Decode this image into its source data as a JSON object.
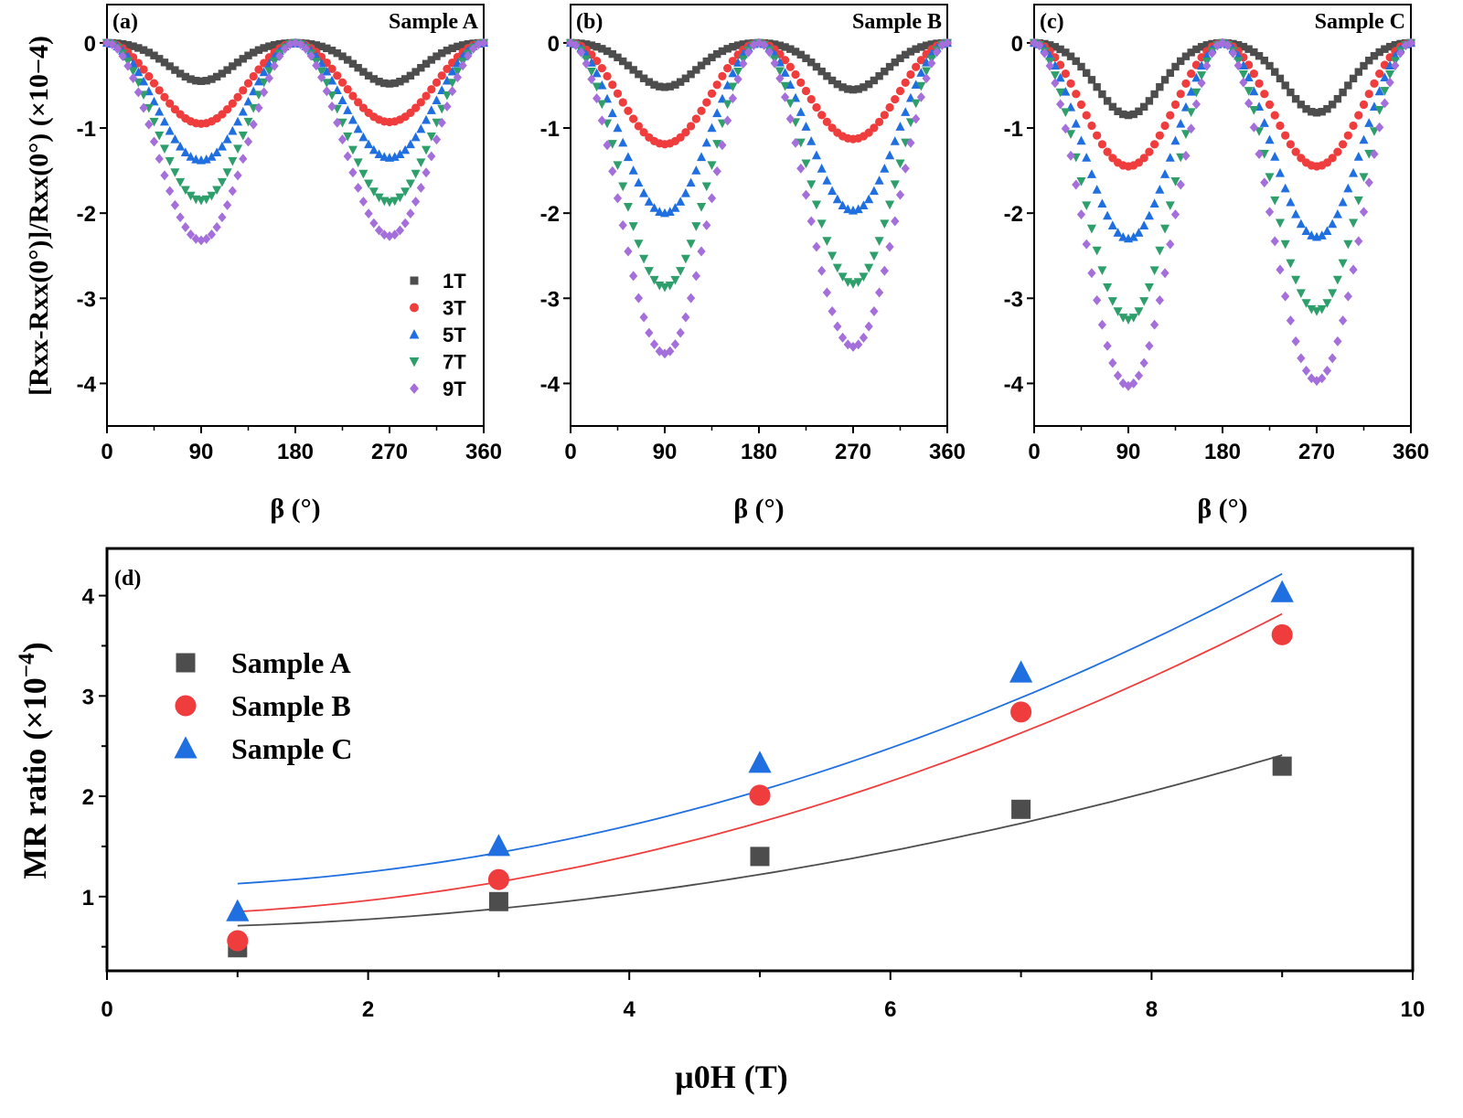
{
  "colors": {
    "1T": "#4d4d4d",
    "3T": "#ef3d3d",
    "5T": "#1f6fe0",
    "7T": "#2e9e6a",
    "9T": "#a56fdb",
    "Sample A": "#4d4d4d",
    "Sample B": "#ef3d3d",
    "Sample C": "#1f6fe0"
  },
  "chart_data": [
    {
      "type": "scatter",
      "panel": "(a)",
      "title": "Sample A",
      "xlabel": "β (°)",
      "ylabel": "[Rxx-Rxx(0°)]/Rxx(0°) (×10−4)",
      "xlim": [
        0,
        360
      ],
      "ylim": [
        -4.5,
        0.45
      ],
      "xticks": [
        "0",
        "90",
        "180",
        "270",
        "360"
      ],
      "yticks": [
        "0",
        "-1",
        "-2",
        "-3",
        "-4"
      ],
      "angle_step_deg": 5,
      "legend": "bottom-right",
      "series": [
        {
          "name": "1T",
          "marker": "square",
          "min_at_90": -0.45,
          "min_at_270": -0.48
        },
        {
          "name": "3T",
          "marker": "circle",
          "min_at_90": -0.95,
          "min_at_270": -0.93
        },
        {
          "name": "5T",
          "marker": "triangle-up",
          "min_at_90": -1.38,
          "min_at_270": -1.35
        },
        {
          "name": "7T",
          "marker": "triangle-down",
          "min_at_90": -1.85,
          "min_at_270": -1.87
        },
        {
          "name": "9T",
          "marker": "diamond",
          "min_at_90": -2.32,
          "min_at_270": -2.27
        }
      ]
    },
    {
      "type": "scatter",
      "panel": "(b)",
      "title": "Sample B",
      "xlabel": "β (°)",
      "xlim": [
        0,
        360
      ],
      "ylim": [
        -4.5,
        0.45
      ],
      "xticks": [
        "0",
        "90",
        "180",
        "270",
        "360"
      ],
      "yticks": [
        "0",
        "-1",
        "-2",
        "-3",
        "-4"
      ],
      "angle_step_deg": 5,
      "series": [
        {
          "name": "1T",
          "marker": "square",
          "min_at_90": -0.52,
          "min_at_270": -0.55
        },
        {
          "name": "3T",
          "marker": "circle",
          "min_at_90": -1.19,
          "min_at_270": -1.13
        },
        {
          "name": "5T",
          "marker": "triangle-up",
          "min_at_90": -2.0,
          "min_at_270": -1.97
        },
        {
          "name": "7T",
          "marker": "triangle-down",
          "min_at_90": -2.87,
          "min_at_270": -2.83
        },
        {
          "name": "9T",
          "marker": "diamond",
          "min_at_90": -3.65,
          "min_at_270": -3.57
        }
      ]
    },
    {
      "type": "scatter",
      "panel": "(c)",
      "title": "Sample C",
      "xlabel": "β (°)",
      "xlim": [
        0,
        360
      ],
      "ylim": [
        -4.5,
        0.45
      ],
      "xticks": [
        "0",
        "90",
        "180",
        "270",
        "360"
      ],
      "yticks": [
        "0",
        "-1",
        "-2",
        "-3",
        "-4"
      ],
      "angle_step_deg": 5,
      "series": [
        {
          "name": "1T",
          "marker": "square",
          "min_at_90": -0.85,
          "min_at_270": -0.82
        },
        {
          "name": "3T",
          "marker": "circle",
          "min_at_90": -1.45,
          "min_at_270": -1.45
        },
        {
          "name": "5T",
          "marker": "triangle-up",
          "min_at_90": -2.3,
          "min_at_270": -2.28
        },
        {
          "name": "7T",
          "marker": "triangle-down",
          "min_at_90": -3.25,
          "min_at_270": -3.15
        },
        {
          "name": "9T",
          "marker": "diamond",
          "min_at_90": -4.03,
          "min_at_270": -3.97
        }
      ]
    },
    {
      "type": "scatter",
      "panel": "(d)",
      "xlabel": "μ0H (T)",
      "ylabel": "MR ratio (×10−4)",
      "xlim": [
        0,
        10
      ],
      "ylim": [
        0.26,
        4.47
      ],
      "xticks": [
        "0",
        "2",
        "4",
        "6",
        "8",
        "10"
      ],
      "yticks": [
        "1",
        "2",
        "3",
        "4"
      ],
      "legend": "top-left",
      "x": [
        1,
        3,
        5,
        7,
        9
      ],
      "series": [
        {
          "name": "Sample A",
          "marker": "square",
          "values": [
            0.49,
            0.95,
            1.4,
            1.87,
            2.3
          ],
          "fit": {
            "form": "a+b*x^2",
            "a": 0.689,
            "b": 0.02125,
            "range": [
              1,
              9
            ]
          }
        },
        {
          "name": "Sample B",
          "marker": "circle",
          "values": [
            0.56,
            1.17,
            2.01,
            2.84,
            3.61
          ],
          "fit": {
            "form": "a+b*x^2",
            "a": 0.813,
            "b": 0.0371,
            "range": [
              1,
              9
            ]
          }
        },
        {
          "name": "Sample C",
          "marker": "triangle-up",
          "values": [
            0.85,
            1.5,
            2.33,
            3.23,
            4.03
          ],
          "fit": {
            "form": "a+b*x^2",
            "a": 1.091,
            "b": 0.0386,
            "range": [
              1,
              9
            ]
          }
        }
      ]
    }
  ],
  "labels": {
    "top_ylabel_parts": [
      [
        "[R",
        0
      ],
      [
        "xx",
        1
      ],
      [
        "-R",
        0
      ],
      [
        "xx",
        1
      ],
      [
        "(0°)]/R",
        0
      ],
      [
        "xx",
        1
      ],
      [
        "(0°) (×10",
        0
      ],
      [
        "−4",
        2
      ],
      [
        ")",
        0
      ]
    ],
    "d_ylabel_parts": [
      [
        "MR ratio (×10",
        0
      ],
      [
        "−4",
        2
      ],
      [
        ")",
        0
      ]
    ],
    "d_xlabel_parts": [
      [
        "μ",
        0
      ],
      [
        "0",
        1
      ],
      [
        "H (T)",
        0
      ]
    ]
  }
}
